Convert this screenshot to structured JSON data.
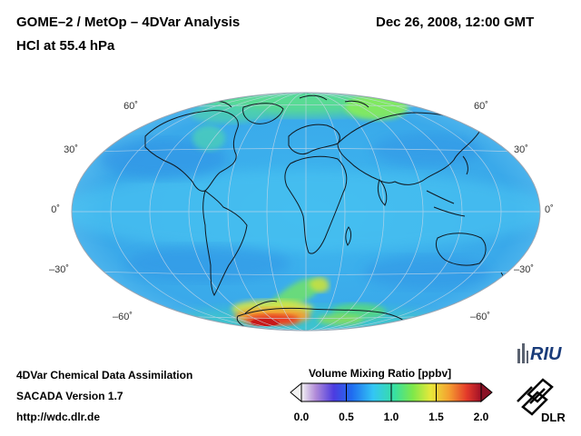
{
  "header": {
    "title_line1": "GOME–2 / MetOp – 4DVar Analysis",
    "title_line2": "HCl at 55.4 hPa",
    "datetime": "Dec 26, 2008, 12:00 GMT"
  },
  "map": {
    "projection": "Hammer-Aitoff (global)",
    "lat_labels_left": [
      "60˚",
      "30˚",
      "0˚",
      "–30˚",
      "–60˚"
    ],
    "lat_labels_right": [
      "60˚",
      "30˚",
      "0˚",
      "–30˚",
      "–60˚"
    ],
    "colors": {
      "background_field": "#39b8f0",
      "low": "#2a8ee8",
      "mid": "#5fe68a",
      "high": "#f2c23a",
      "peak": "#d81818",
      "coastline": "#101820",
      "grid": "#c8d8e8"
    }
  },
  "colorbar": {
    "label": "Volume Mixing Ratio [ppbv]",
    "ticks": [
      "0.0",
      "0.5",
      "1.0",
      "1.5",
      "2.0"
    ],
    "range": [
      0.0,
      2.0
    ]
  },
  "footer": {
    "line1": "4DVar Chemical Data Assimilation",
    "line2": "SACADA Version 1.7",
    "line3": "http://wdc.dlr.de"
  },
  "logos": {
    "riu": "RIU",
    "dlr": "DLR"
  }
}
